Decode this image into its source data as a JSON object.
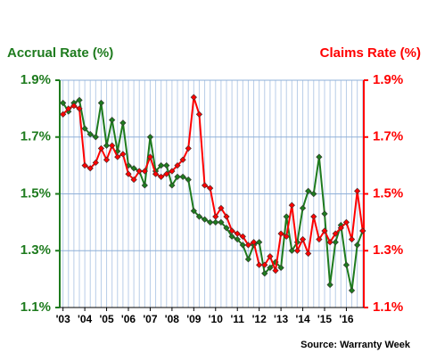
{
  "chart_data": {
    "type": "line",
    "title_left": "Accrual Rate (%)",
    "title_right": "Claims Rate (%)",
    "source": "Source: Warranty Week",
    "x": [
      2003,
      2003.25,
      2003.5,
      2003.75,
      2004,
      2004.25,
      2004.5,
      2004.75,
      2005,
      2005.25,
      2005.5,
      2005.75,
      2006,
      2006.25,
      2006.5,
      2006.75,
      2007,
      2007.25,
      2007.5,
      2007.75,
      2008,
      2008.25,
      2008.5,
      2008.75,
      2009,
      2009.25,
      2009.5,
      2009.75,
      2010,
      2010.25,
      2010.5,
      2010.75,
      2011,
      2011.25,
      2011.5,
      2011.75,
      2012,
      2012.25,
      2012.5,
      2012.75,
      2013,
      2013.25,
      2013.5,
      2013.75,
      2014,
      2014.25,
      2014.5,
      2014.75,
      2015,
      2015.25,
      2015.5,
      2015.75,
      2016,
      2016.25,
      2016.5,
      2016.75
    ],
    "xlim": [
      2002.85,
      2016.8
    ],
    "xticks": [
      {
        "value": 2003,
        "label": "'03"
      },
      {
        "value": 2004,
        "label": "'04"
      },
      {
        "value": 2005,
        "label": "'05"
      },
      {
        "value": 2006,
        "label": "'06"
      },
      {
        "value": 2007,
        "label": "'07"
      },
      {
        "value": 2008,
        "label": "'08"
      },
      {
        "value": 2009,
        "label": "'09"
      },
      {
        "value": 2010,
        "label": "'10"
      },
      {
        "value": 2011,
        "label": "'11"
      },
      {
        "value": 2012,
        "label": "'12"
      },
      {
        "value": 2013,
        "label": "'13"
      },
      {
        "value": 2014,
        "label": "'14"
      },
      {
        "value": 2015,
        "label": "'15"
      },
      {
        "value": 2016,
        "label": "'16"
      }
    ],
    "ylim": [
      1.1,
      1.9
    ],
    "yticks": [
      {
        "value": 1.1,
        "label": "1.1%"
      },
      {
        "value": 1.3,
        "label": "1.3%"
      },
      {
        "value": 1.5,
        "label": "1.5%"
      },
      {
        "value": 1.7,
        "label": "1.7%"
      },
      {
        "value": 1.9,
        "label": "1.9%"
      }
    ],
    "y2lim": [
      1.1,
      1.9
    ],
    "y2ticks": [
      {
        "value": 1.1,
        "label": "1.1%"
      },
      {
        "value": 1.3,
        "label": "1.3%"
      },
      {
        "value": 1.5,
        "label": "1.5%"
      },
      {
        "value": 1.7,
        "label": "1.7%"
      },
      {
        "value": 1.9,
        "label": "1.9%"
      }
    ],
    "grid": true,
    "series": [
      {
        "name": "Accrual Rate",
        "color": "#1e7b1e",
        "values": [
          1.82,
          1.79,
          1.82,
          1.83,
          1.73,
          1.71,
          1.7,
          1.82,
          1.67,
          1.76,
          1.65,
          1.75,
          1.6,
          1.59,
          1.58,
          1.53,
          1.7,
          1.58,
          1.6,
          1.6,
          1.53,
          1.56,
          1.56,
          1.55,
          1.44,
          1.42,
          1.41,
          1.4,
          1.4,
          1.4,
          1.38,
          1.35,
          1.34,
          1.32,
          1.27,
          1.32,
          1.33,
          1.22,
          1.24,
          1.26,
          1.24,
          1.42,
          1.3,
          1.33,
          1.45,
          1.51,
          1.5,
          1.63,
          1.43,
          1.18,
          1.33,
          1.39,
          1.25,
          1.16,
          1.32,
          1.37
        ]
      },
      {
        "name": "Claims Rate",
        "color": "#ff0000",
        "axis": "y2",
        "values": [
          1.78,
          1.8,
          1.81,
          1.8,
          1.6,
          1.59,
          1.61,
          1.66,
          1.62,
          1.67,
          1.63,
          1.64,
          1.57,
          1.55,
          1.58,
          1.58,
          1.63,
          1.57,
          1.56,
          1.57,
          1.58,
          1.6,
          1.62,
          1.66,
          1.84,
          1.78,
          1.53,
          1.52,
          1.42,
          1.45,
          1.42,
          1.37,
          1.36,
          1.35,
          1.32,
          1.33,
          1.25,
          1.25,
          1.28,
          1.23,
          1.36,
          1.35,
          1.46,
          1.3,
          1.34,
          1.29,
          1.42,
          1.34,
          1.37,
          1.33,
          1.36,
          1.38,
          1.4,
          1.34,
          1.51,
          1.37
        ]
      }
    ]
  }
}
